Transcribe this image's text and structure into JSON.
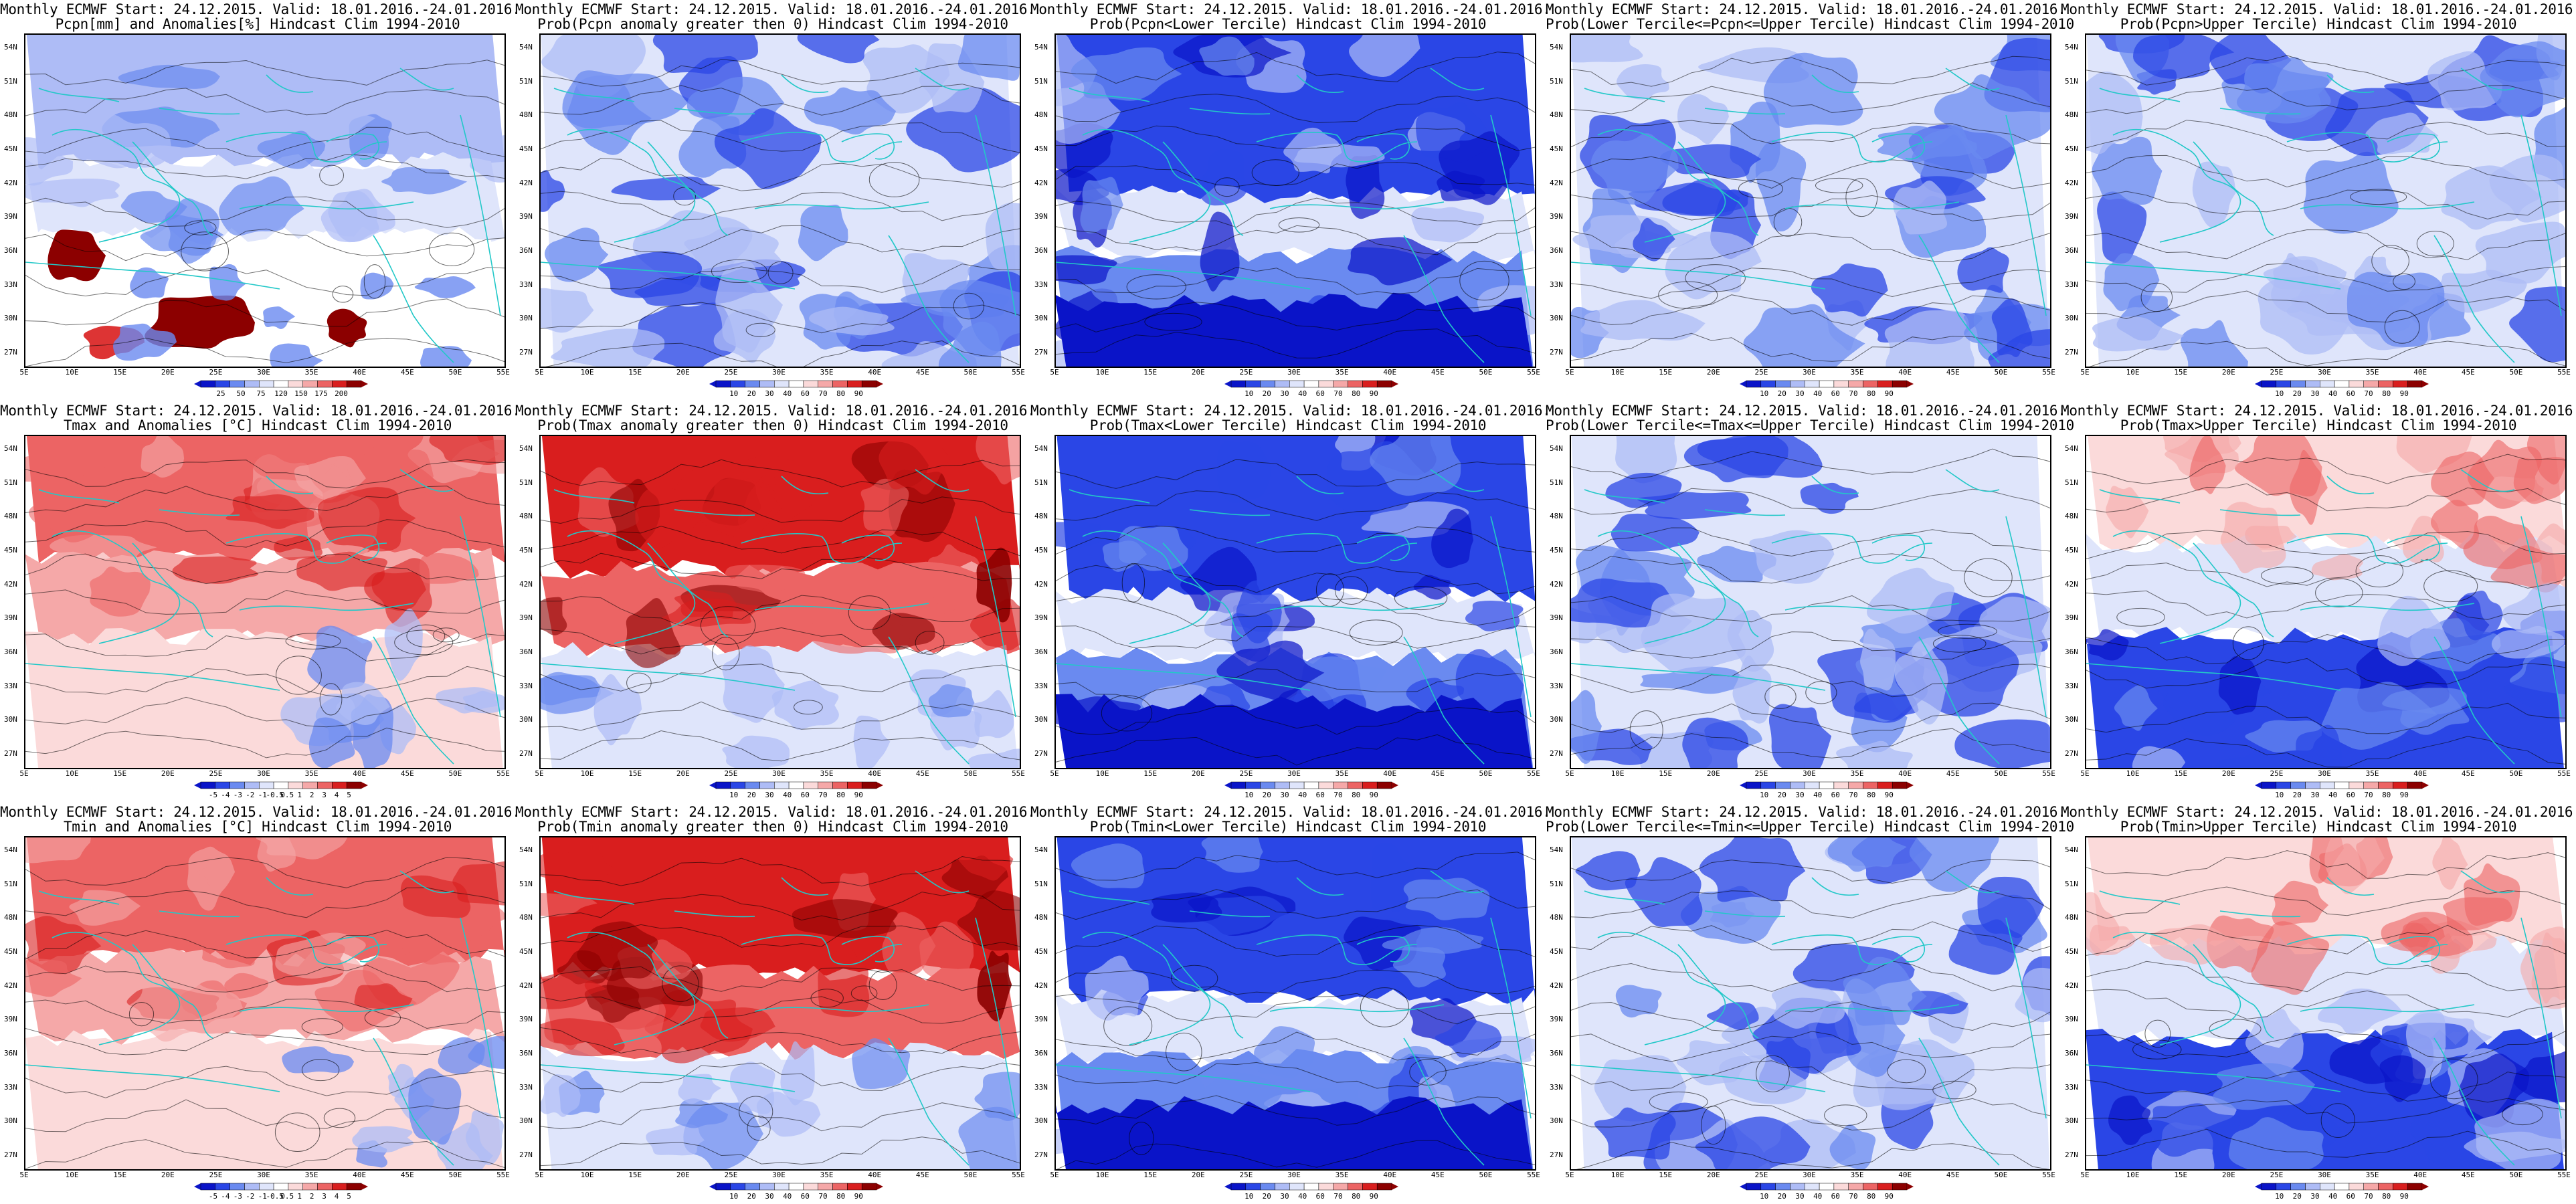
{
  "header": "Monthly ECMWF  Start: 24.12.2015.  Valid: 18.01.2016.-24.01.2016.",
  "lat_labels": [
    "54N",
    "51N",
    "48N",
    "45N",
    "42N",
    "39N",
    "36N",
    "33N",
    "30N",
    "27N"
  ],
  "lon_labels": [
    "5E",
    "10E",
    "15E",
    "20E",
    "25E",
    "30E",
    "35E",
    "40E",
    "45E",
    "50E",
    "55E"
  ],
  "colors": {
    "coast": "#22c8c8",
    "contour": "#000000",
    "blue_scale": [
      "#0a14c8",
      "#2a46e6",
      "#6a8af0",
      "#aebcf6",
      "#dfe5fb"
    ],
    "red_scale": [
      "#fbdada",
      "#f5a8a8",
      "#ec6464",
      "#d91e1e",
      "#8c0000"
    ]
  },
  "panels": [
    {
      "title2": "Pcpn[mm] and Anomalies[%] Hindcast Clim 1994-2010",
      "scheme": "pcpn",
      "ticks": [
        "25",
        "50",
        "75",
        "120",
        "150",
        "175",
        "200"
      ]
    },
    {
      "title2": "Prob(Pcpn anomaly greater then 0) Hindcast Clim 1994-2010",
      "scheme": "blue",
      "ticks": [
        "10",
        "20",
        "30",
        "40",
        "60",
        "70",
        "80",
        "90"
      ]
    },
    {
      "title2": "Prob(Pcpn<Lower Tercile) Hindcast Clim 1994-2010",
      "scheme": "bluestrong",
      "ticks": [
        "10",
        "20",
        "30",
        "40",
        "60",
        "70",
        "80",
        "90"
      ]
    },
    {
      "title2": "Prob(Lower Tercile<=Pcpn<=Upper Tercile) Hindcast Clim 1994-2010",
      "scheme": "blue",
      "ticks": [
        "10",
        "20",
        "30",
        "40",
        "60",
        "70",
        "80",
        "90"
      ]
    },
    {
      "title2": "Prob(Pcpn>Upper Tercile) Hindcast Clim 1994-2010",
      "scheme": "blue",
      "ticks": [
        "10",
        "20",
        "30",
        "40",
        "60",
        "70",
        "80",
        "90"
      ]
    },
    {
      "title2": "Tmax and Anomalies [°C] Hindcast Clim 1994-2010",
      "scheme": "warm",
      "ticks": [
        "-5",
        "-4",
        "-3",
        "-2",
        "-1",
        "-0.5",
        "0.5",
        "1",
        "2",
        "3",
        "4",
        "5"
      ]
    },
    {
      "title2": "Prob(Tmax anomaly greater then 0) Hindcast Clim 1994-2010",
      "scheme": "warmstrong",
      "ticks": [
        "10",
        "20",
        "30",
        "40",
        "60",
        "70",
        "80",
        "90"
      ]
    },
    {
      "title2": "Prob(Tmax<Lower Tercile) Hindcast Clim 1994-2010",
      "scheme": "bluestrong",
      "ticks": [
        "10",
        "20",
        "30",
        "40",
        "60",
        "70",
        "80",
        "90"
      ]
    },
    {
      "title2": "Prob(Lower Tercile<=Tmax<=Upper Tercile) Hindcast Clim 1994-2010",
      "scheme": "blue",
      "ticks": [
        "10",
        "20",
        "30",
        "40",
        "60",
        "70",
        "80",
        "90"
      ]
    },
    {
      "title2": "Prob(Tmax>Upper Tercile) Hindcast Clim 1994-2010",
      "scheme": "mixed",
      "ticks": [
        "10",
        "20",
        "30",
        "40",
        "60",
        "70",
        "80",
        "90"
      ]
    },
    {
      "title2": "Tmin and Anomalies [°C] Hindcast Clim 1994-2010",
      "scheme": "warm",
      "ticks": [
        "-5",
        "-4",
        "-3",
        "-2",
        "-1",
        "-0.5",
        "0.5",
        "1",
        "2",
        "3",
        "4",
        "5"
      ]
    },
    {
      "title2": "Prob(Tmin anomaly greater then 0) Hindcast Clim 1994-2010",
      "scheme": "warmstrong",
      "ticks": [
        "10",
        "20",
        "30",
        "40",
        "60",
        "70",
        "80",
        "90"
      ]
    },
    {
      "title2": "Prob(Tmin<Lower Tercile) Hindcast Clim 1994-2010",
      "scheme": "bluestrong",
      "ticks": [
        "10",
        "20",
        "30",
        "40",
        "60",
        "70",
        "80",
        "90"
      ]
    },
    {
      "title2": "Prob(Lower Tercile<=Tmin<=Upper Tercile) Hindcast Clim 1994-2010",
      "scheme": "blue",
      "ticks": [
        "10",
        "20",
        "30",
        "40",
        "60",
        "70",
        "80",
        "90"
      ]
    },
    {
      "title2": "Prob(Tmin>Upper Tercile) Hindcast Clim 1994-2010",
      "scheme": "mixed",
      "ticks": [
        "10",
        "20",
        "30",
        "40",
        "60",
        "70",
        "80",
        "90"
      ]
    }
  ]
}
